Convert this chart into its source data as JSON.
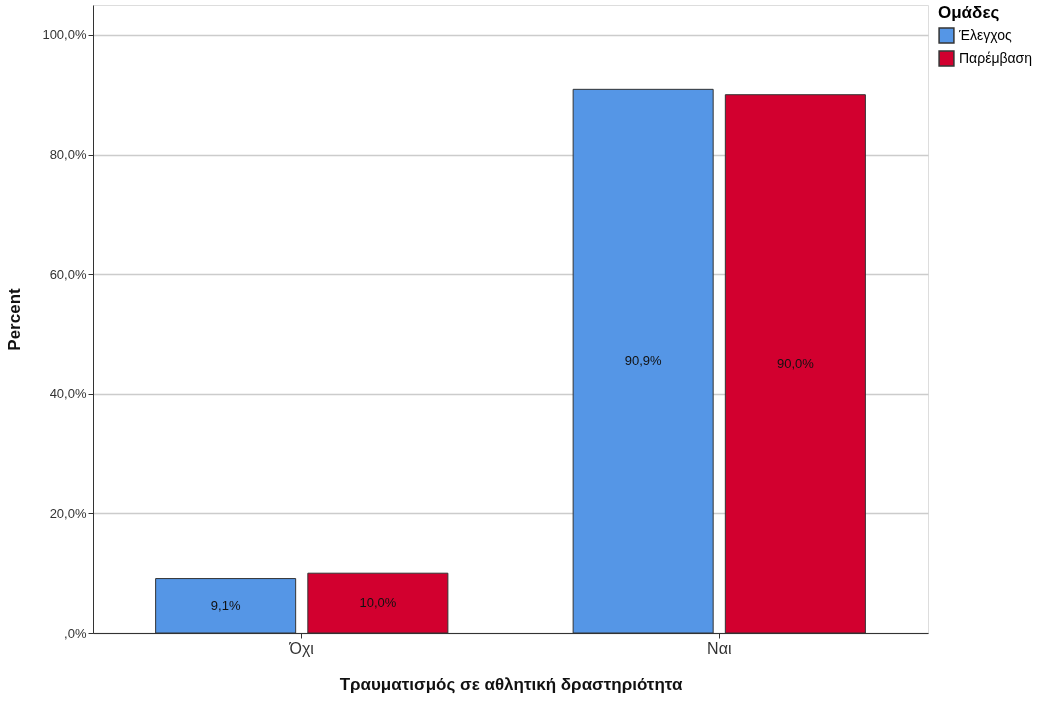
{
  "chart_data": {
    "type": "bar",
    "xlabel": "Τραυματισμός σε αθλητική δραστηριότητα",
    "ylabel": "Percent",
    "legend_title": "Ομάδες",
    "categories": [
      "Όχι",
      "Ναι"
    ],
    "series": [
      {
        "name": "Έλεγχος",
        "color": "#5596e6",
        "values": [
          9.1,
          90.9
        ],
        "value_labels": [
          "9,1%",
          "90,9%"
        ]
      },
      {
        "name": "Παρέμβαση",
        "color": "#d2002f",
        "values": [
          10.0,
          90.0
        ],
        "value_labels": [
          "10,0%",
          "90,0%"
        ]
      }
    ],
    "ylim": [
      0,
      105
    ],
    "yticks": [
      {
        "value": 0,
        "label": ",0%"
      },
      {
        "value": 20,
        "label": "20,0%"
      },
      {
        "value": 40,
        "label": "40,0%"
      },
      {
        "value": 60,
        "label": "60,0%"
      },
      {
        "value": 80,
        "label": "80,0%"
      },
      {
        "value": 100,
        "label": "100,0%"
      }
    ],
    "grid": "y",
    "legend": "top right"
  }
}
